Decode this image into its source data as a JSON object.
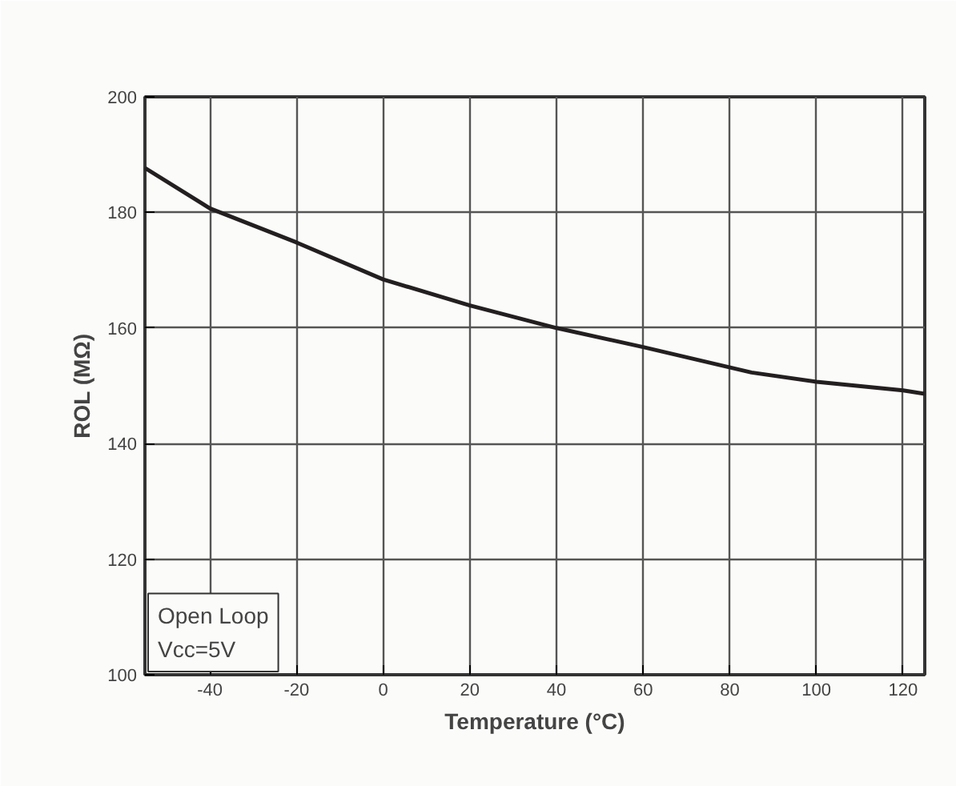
{
  "chart_data": {
    "type": "line",
    "xlabel": "Temperature (°C)",
    "ylabel": "ROL (MΩ)",
    "xlim": [
      -55,
      125
    ],
    "ylim": [
      100,
      200
    ],
    "xticks": [
      -40,
      -20,
      0,
      20,
      40,
      60,
      80,
      100,
      120
    ],
    "yticks": [
      100,
      120,
      140,
      160,
      180,
      200
    ],
    "grid": true,
    "line_style": "solid",
    "annotations": [
      "Open Loop\nVcc=5V"
    ],
    "series": [
      {
        "color": "#231f20",
        "x": [
          -55,
          -40,
          -20,
          0,
          20,
          40,
          60,
          85,
          100,
          120,
          125
        ],
        "values": [
          187.7,
          180.7,
          174.8,
          168.4,
          163.9,
          160,
          156.7,
          152.3,
          150.7,
          149.2,
          148.6
        ]
      }
    ]
  }
}
